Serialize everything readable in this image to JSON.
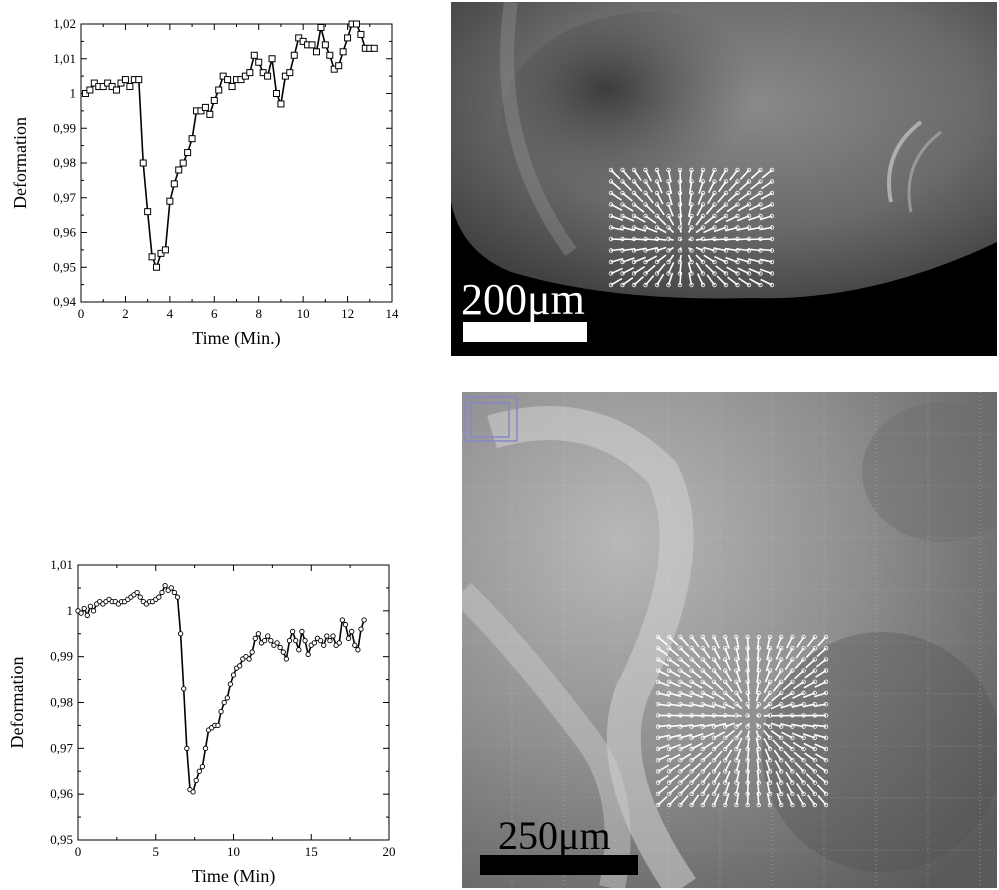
{
  "chart_data": [
    {
      "type": "line",
      "xlabel": "Time (Min.)",
      "ylabel": "Deformation",
      "xlim": [
        0,
        14
      ],
      "ylim": [
        0.94,
        1.02
      ],
      "xticks": [
        0,
        2,
        4,
        6,
        8,
        10,
        12,
        14
      ],
      "yticks": [
        0.94,
        0.95,
        0.96,
        0.97,
        0.98,
        0.99,
        1.0,
        1.01,
        1.02
      ],
      "xtick_labels": [
        "0",
        "2",
        "4",
        "6",
        "8",
        "10",
        "12",
        "14"
      ],
      "ytick_labels": [
        "0,94",
        "0,95",
        "0,96",
        "0,97",
        "0,98",
        "0,99",
        "1",
        "1,01",
        "1,02"
      ],
      "marker": "square",
      "x": [
        0.2,
        0.4,
        0.6,
        0.8,
        1.0,
        1.2,
        1.4,
        1.6,
        1.8,
        2.0,
        2.2,
        2.4,
        2.6,
        2.8,
        3.0,
        3.2,
        3.4,
        3.6,
        3.8,
        4.0,
        4.2,
        4.4,
        4.6,
        4.8,
        5.0,
        5.2,
        5.4,
        5.6,
        5.8,
        6.0,
        6.2,
        6.4,
        6.6,
        6.8,
        7.0,
        7.2,
        7.4,
        7.6,
        7.8,
        8.0,
        8.2,
        8.4,
        8.6,
        8.8,
        9.0,
        9.2,
        9.4,
        9.6,
        9.8,
        10.0,
        10.2,
        10.4,
        10.6,
        10.8,
        11.0,
        11.2,
        11.4,
        11.6,
        11.8,
        12.0,
        12.2,
        12.4,
        12.6,
        12.8,
        13.0,
        13.2
      ],
      "y": [
        1.0,
        1.001,
        1.003,
        1.002,
        1.002,
        1.003,
        1.002,
        1.001,
        1.003,
        1.004,
        1.002,
        1.004,
        1.004,
        0.98,
        0.966,
        0.953,
        0.95,
        0.954,
        0.955,
        0.969,
        0.974,
        0.978,
        0.98,
        0.983,
        0.987,
        0.995,
        0.995,
        0.996,
        0.994,
        0.998,
        1.001,
        1.005,
        1.004,
        1.002,
        1.004,
        1.004,
        1.005,
        1.006,
        1.011,
        1.009,
        1.006,
        1.005,
        1.01,
        1.0,
        0.997,
        1.005,
        1.006,
        1.011,
        1.016,
        1.015,
        1.014,
        1.014,
        1.012,
        1.019,
        1.014,
        1.011,
        1.007,
        1.008,
        1.012,
        1.016,
        1.02,
        1.02,
        1.017,
        1.013,
        1.013,
        1.013
      ]
    },
    {
      "type": "line",
      "xlabel": "Time (Min)",
      "ylabel": "Deformation",
      "xlim": [
        0,
        20
      ],
      "ylim": [
        0.95,
        1.01
      ],
      "xticks": [
        0,
        5,
        10,
        15,
        20
      ],
      "yticks": [
        0.95,
        0.96,
        0.97,
        0.98,
        0.99,
        1.0,
        1.01
      ],
      "xtick_labels": [
        "0",
        "5",
        "10",
        "15",
        "20"
      ],
      "ytick_labels": [
        "0,95",
        "0,96",
        "0,97",
        "0,98",
        "0,99",
        "1",
        "1,01"
      ],
      "marker": "circle",
      "x": [
        0.0,
        0.2,
        0.4,
        0.6,
        0.8,
        1.0,
        1.2,
        1.4,
        1.6,
        1.8,
        2.0,
        2.2,
        2.4,
        2.6,
        2.8,
        3.0,
        3.2,
        3.4,
        3.6,
        3.8,
        4.0,
        4.2,
        4.4,
        4.6,
        4.8,
        5.0,
        5.2,
        5.4,
        5.6,
        5.8,
        6.0,
        6.2,
        6.4,
        6.6,
        6.8,
        7.0,
        7.2,
        7.4,
        7.6,
        7.8,
        8.0,
        8.2,
        8.4,
        8.6,
        8.8,
        9.0,
        9.2,
        9.4,
        9.6,
        9.8,
        10.0,
        10.2,
        10.4,
        10.6,
        10.8,
        11.0,
        11.2,
        11.4,
        11.6,
        11.8,
        12.0,
        12.2,
        12.4,
        12.6,
        12.8,
        13.0,
        13.2,
        13.4,
        13.6,
        13.8,
        14.0,
        14.2,
        14.4,
        14.6,
        14.8,
        15.0,
        15.2,
        15.4,
        15.6,
        15.8,
        16.0,
        16.2,
        16.4,
        16.6,
        16.8,
        17.0,
        17.2,
        17.4,
        17.6,
        17.8,
        18.0,
        18.2,
        18.4
      ],
      "y": [
        1.0,
        0.9995,
        1.0005,
        0.999,
        1.001,
        1.0,
        1.0015,
        1.002,
        1.0015,
        1.002,
        1.0025,
        1.002,
        1.002,
        1.0015,
        1.002,
        1.002,
        1.0025,
        1.003,
        1.0035,
        1.004,
        1.003,
        1.002,
        1.0015,
        1.002,
        1.002,
        1.0025,
        1.003,
        1.004,
        1.0055,
        1.0045,
        1.005,
        1.004,
        1.003,
        0.995,
        0.983,
        0.97,
        0.961,
        0.9605,
        0.963,
        0.965,
        0.966,
        0.97,
        0.974,
        0.9745,
        0.975,
        0.975,
        0.978,
        0.98,
        0.981,
        0.984,
        0.986,
        0.9875,
        0.988,
        0.9895,
        0.99,
        0.9895,
        0.991,
        0.994,
        0.995,
        0.993,
        0.9935,
        0.9945,
        0.9935,
        0.9925,
        0.993,
        0.992,
        0.991,
        0.9895,
        0.9935,
        0.9955,
        0.9935,
        0.9915,
        0.9955,
        0.9935,
        0.9905,
        0.9925,
        0.993,
        0.994,
        0.9935,
        0.9925,
        0.9945,
        0.9935,
        0.9945,
        0.9925,
        0.993,
        0.998,
        0.997,
        0.994,
        0.9955,
        0.9925,
        0.9915,
        0.996,
        0.998
      ]
    }
  ],
  "images": [
    {
      "scale_text": "200μm"
    },
    {
      "scale_text": "250μm"
    }
  ]
}
